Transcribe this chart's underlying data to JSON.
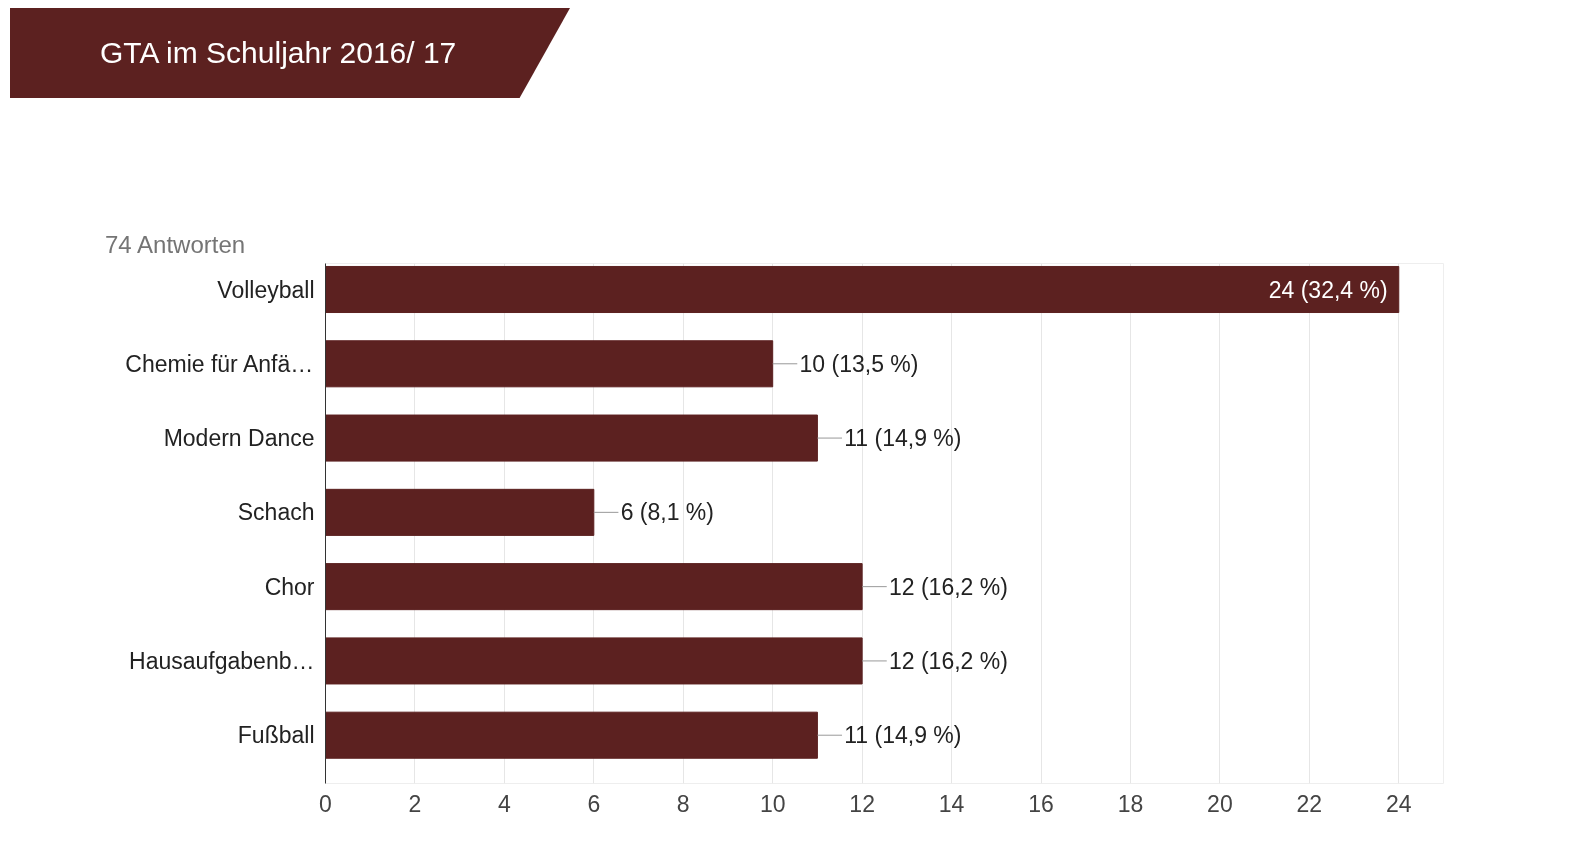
{
  "chart_data": {
    "type": "bar",
    "orientation": "horizontal",
    "title": "GTA im Schuljahr 2016/ 17",
    "subtitle": "74 Antworten",
    "categories": [
      "Volleyball",
      "Chemie für Anfä…",
      "Modern Dance",
      "Schach",
      "Chor",
      "Hausaufgabenb…",
      "Fußball"
    ],
    "values": [
      24,
      10,
      11,
      6,
      12,
      12,
      11
    ],
    "value_labels": [
      "24 (32,4 %)",
      "10 (13,5 %)",
      "11 (14,9 %)",
      "6 (8,1 %)",
      "12 (16,2 %)",
      "12 (16,2 %)",
      "11 (14,9 %)"
    ],
    "color": "#5c2120",
    "xlim": [
      0,
      25
    ],
    "xticks": [
      0,
      2,
      4,
      6,
      8,
      10,
      12,
      14,
      16,
      18,
      20,
      22,
      24
    ],
    "grid": "x"
  }
}
